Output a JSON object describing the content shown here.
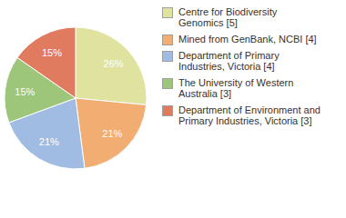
{
  "chart_data": {
    "type": "pie",
    "categories": [
      "Centre for Biodiversity Genomics [5]",
      "Mined from GenBank, NCBI [4]",
      "Department of Primary Industries, Victoria [4]",
      "The University of Western Australia [3]",
      "Department of Environment and Primary Industries, Victoria [3]"
    ],
    "values": [
      26,
      21,
      21,
      15,
      15
    ],
    "value_labels": [
      "26%",
      "21%",
      "21%",
      "15%",
      "15%"
    ],
    "colors": [
      "#e0e39f",
      "#f2ae72",
      "#a0bce2",
      "#9dc67b",
      "#e07b60"
    ],
    "data_labels": true,
    "legend": "right"
  }
}
